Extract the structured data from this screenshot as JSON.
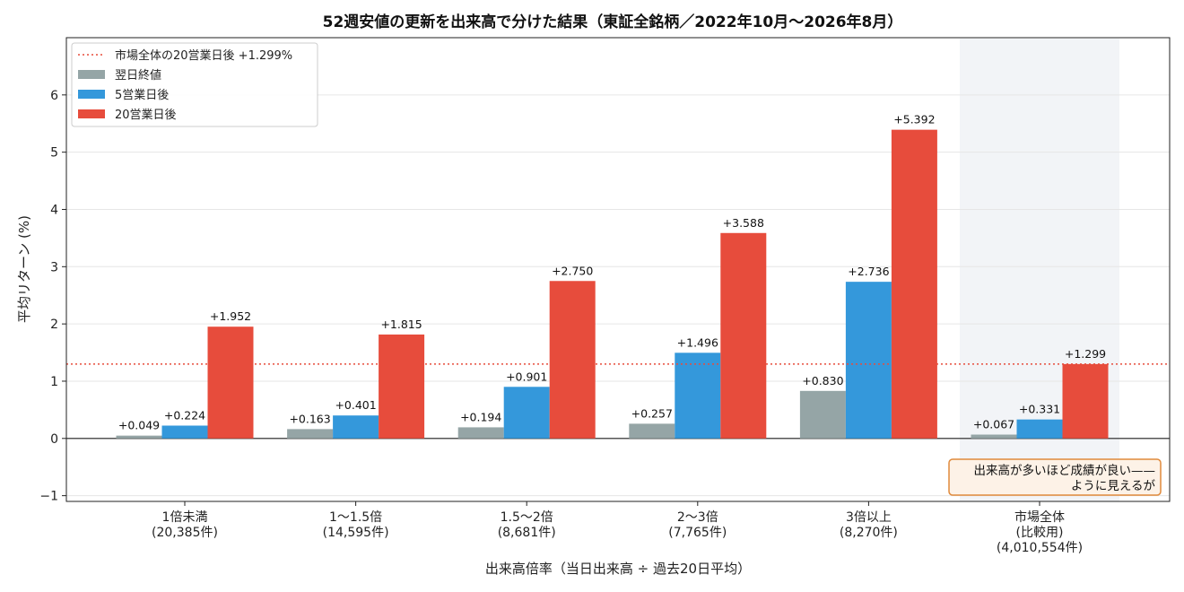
{
  "chart_data": {
    "type": "bar",
    "title": "52週安値の更新を出来高で分けた結果（東証全銘柄／2022年10月〜2026年8月）",
    "xlabel": "出来高倍率（当日出来高 ÷ 過去20日平均）",
    "ylabel": "平均リターン (%)",
    "ylim": [
      -1.1,
      7
    ],
    "yticks": [
      -1,
      0,
      1,
      2,
      3,
      4,
      5,
      6
    ],
    "ytick_labels": [
      "−1",
      "0",
      "1",
      "2",
      "3",
      "4",
      "5",
      "6"
    ],
    "grid": true,
    "legend_position": "top-left",
    "categories": [
      [
        "1倍未満",
        "(20,385件)"
      ],
      [
        "1〜1.5倍",
        "(14,595件)"
      ],
      [
        "1.5〜2倍",
        "(8,681件)"
      ],
      [
        "2〜3倍",
        "(7,765件)"
      ],
      [
        "3倍以上",
        "(8,270件)"
      ],
      [
        "市場全体",
        "(比較用)",
        "(4,010,554件)"
      ]
    ],
    "series": [
      {
        "name": "翌日終値",
        "color": "#95a5a6",
        "values": [
          0.049,
          0.163,
          0.194,
          0.257,
          0.83,
          0.067
        ],
        "labels": [
          "+0.049",
          "+0.163",
          "+0.194",
          "+0.257",
          "+0.830",
          "+0.067"
        ]
      },
      {
        "name": "5営業日後",
        "color": "#3498db",
        "values": [
          0.224,
          0.401,
          0.901,
          1.496,
          2.736,
          0.331
        ],
        "labels": [
          "+0.224",
          "+0.401",
          "+0.901",
          "+1.496",
          "+2.736",
          "+0.331"
        ]
      },
      {
        "name": "20営業日後",
        "color": "#e74c3c",
        "values": [
          1.952,
          1.815,
          2.75,
          3.588,
          5.392,
          1.299
        ],
        "labels": [
          "+1.952",
          "+1.815",
          "+2.750",
          "+3.588",
          "+5.392",
          "+1.299"
        ]
      }
    ],
    "reference_line": {
      "name": "市場全体の20営業日後 +1.299%",
      "value": 1.299,
      "color": "#e74c3c",
      "style": "dotted"
    },
    "highlight_category_index": 5,
    "highlight_color": "#f2f4f7",
    "annotation": {
      "lines": [
        "出来高が多いほど成績が良い——",
        "ように見えるが"
      ],
      "position": "bottom-right",
      "background": "#fdf2e7",
      "border": "#e08a3c"
    }
  }
}
